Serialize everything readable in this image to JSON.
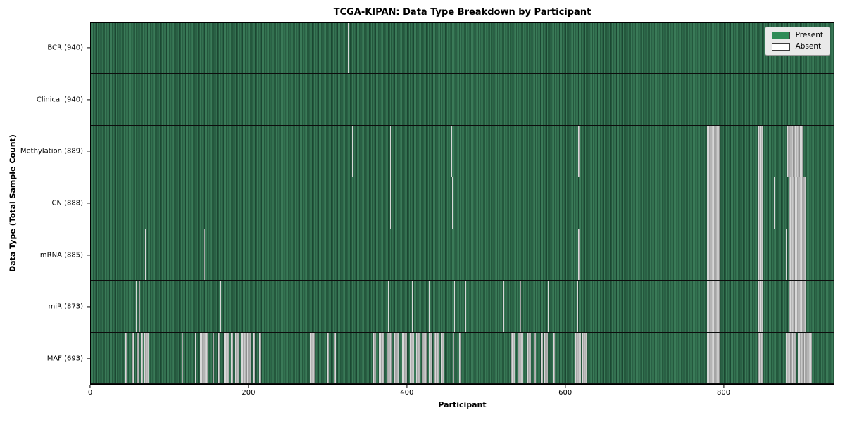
{
  "chart_data": {
    "type": "heatmap",
    "title": "TCGA-KIPAN: Data Type Breakdown by Participant",
    "xlabel": "Participant",
    "ylabel": "Data Type (Total Sample Count)",
    "x_max": 940,
    "x_ticks": [
      0,
      200,
      400,
      600,
      800
    ],
    "grid": false,
    "legend_position": "upper right",
    "legend": [
      {
        "label": "Present",
        "color": "#2e8b57"
      },
      {
        "label": "Absent",
        "color": "#ffffff"
      }
    ],
    "present_color": "#2e8b57",
    "absent_color": "#ffffff",
    "rows": [
      {
        "label": "BCR (940)",
        "total_samples": 940,
        "absent_ranges": [
          [
            325,
            326
          ]
        ]
      },
      {
        "label": "Clinical (940)",
        "total_samples": 940,
        "absent_ranges": [
          [
            444,
            445
          ]
        ]
      },
      {
        "label": "Methylation (889)",
        "total_samples": 889,
        "absent_ranges": [
          [
            49,
            50
          ],
          [
            331,
            332
          ],
          [
            379,
            380
          ],
          [
            456,
            457
          ],
          [
            617,
            618
          ],
          [
            780,
            796
          ],
          [
            845,
            850
          ],
          [
            881,
            902
          ]
        ]
      },
      {
        "label": "CN (888)",
        "total_samples": 888,
        "absent_ranges": [
          [
            64,
            65
          ],
          [
            379,
            380
          ],
          [
            457,
            458
          ],
          [
            618,
            619
          ],
          [
            780,
            796
          ],
          [
            845,
            850
          ],
          [
            864,
            865
          ],
          [
            883,
            904
          ]
        ]
      },
      {
        "label": "mRNA (885)",
        "total_samples": 885,
        "absent_ranges": [
          [
            69,
            70
          ],
          [
            136,
            137
          ],
          [
            143,
            144
          ],
          [
            395,
            396
          ],
          [
            555,
            556
          ],
          [
            617,
            618
          ],
          [
            780,
            796
          ],
          [
            845,
            850
          ],
          [
            865,
            866
          ],
          [
            879,
            880
          ],
          [
            883,
            904
          ]
        ]
      },
      {
        "label": "miR (873)",
        "total_samples": 873,
        "absent_ranges": [
          [
            45,
            46
          ],
          [
            57,
            58
          ],
          [
            61,
            62
          ],
          [
            64,
            65
          ],
          [
            164,
            165
          ],
          [
            338,
            339
          ],
          [
            362,
            363
          ],
          [
            376,
            377
          ],
          [
            406,
            407
          ],
          [
            416,
            417
          ],
          [
            428,
            429
          ],
          [
            440,
            441
          ],
          [
            460,
            461
          ],
          [
            474,
            475
          ],
          [
            522,
            523
          ],
          [
            531,
            532
          ],
          [
            543,
            544
          ],
          [
            555,
            556
          ],
          [
            578,
            579
          ],
          [
            616,
            617
          ],
          [
            780,
            796
          ],
          [
            845,
            850
          ],
          [
            883,
            904
          ]
        ]
      },
      {
        "label": "MAF (693)",
        "total_samples": 693,
        "absent_ranges": [
          [
            44,
            46
          ],
          [
            52,
            54
          ],
          [
            58,
            61
          ],
          [
            63,
            66
          ],
          [
            68,
            74
          ],
          [
            115,
            117
          ],
          [
            132,
            134
          ],
          [
            138,
            148
          ],
          [
            154,
            156
          ],
          [
            161,
            163
          ],
          [
            168,
            175
          ],
          [
            177,
            180
          ],
          [
            183,
            188
          ],
          [
            190,
            203
          ],
          [
            205,
            208
          ],
          [
            213,
            216
          ],
          [
            277,
            283
          ],
          [
            299,
            301
          ],
          [
            307,
            310
          ],
          [
            357,
            361
          ],
          [
            364,
            371
          ],
          [
            374,
            381
          ],
          [
            384,
            390
          ],
          [
            394,
            400
          ],
          [
            404,
            409
          ],
          [
            412,
            416
          ],
          [
            419,
            425
          ],
          [
            428,
            431
          ],
          [
            434,
            440
          ],
          [
            443,
            446
          ],
          [
            458,
            460
          ],
          [
            466,
            469
          ],
          [
            531,
            537
          ],
          [
            540,
            547
          ],
          [
            552,
            557
          ],
          [
            560,
            563
          ],
          [
            569,
            572
          ],
          [
            574,
            578
          ],
          [
            585,
            587
          ],
          [
            613,
            620
          ],
          [
            622,
            627
          ],
          [
            780,
            796
          ],
          [
            844,
            850
          ],
          [
            879,
            893
          ],
          [
            895,
            912
          ]
        ]
      }
    ]
  }
}
